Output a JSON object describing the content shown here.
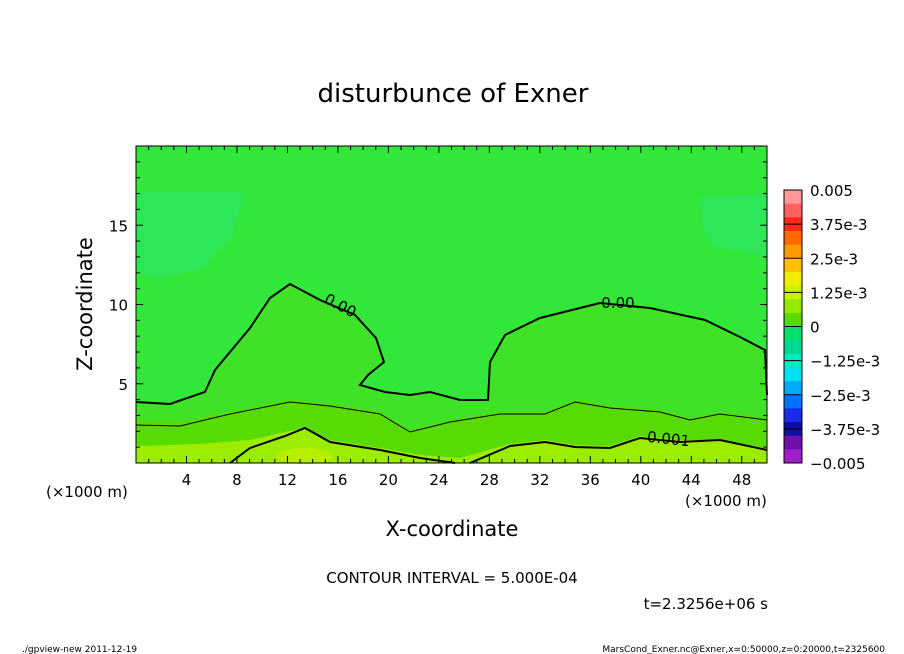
{
  "chart_data": {
    "type": "heatmap",
    "title": "disturbunce of Exner",
    "xlabel": "X-coordinate",
    "ylabel": "Z-coordinate",
    "xlim": [
      0,
      50
    ],
    "ylim": [
      0,
      20
    ],
    "x_unit_label": "(×1000 m)",
    "x_unit_label_right": "(×1000 m)",
    "xticks": [
      4,
      8,
      12,
      16,
      20,
      24,
      28,
      32,
      36,
      40,
      44,
      48
    ],
    "yticks": [
      5,
      10,
      15
    ],
    "contour_labels": [
      "0.00",
      "0.00",
      "0.001"
    ],
    "colorbar": {
      "labels": [
        "0.005",
        "3.75e-3",
        "2.5e-3",
        "1.25e-3",
        "0",
        "−1.25e-3",
        "−2.5e-3",
        "−3.75e-3",
        "−0.005"
      ],
      "colors": [
        "#ff9999",
        "#ff6060",
        "#ff2a1a",
        "#ff6a00",
        "#ff9a00",
        "#ffc000",
        "#f2ec00",
        "#c8f000",
        "#96e800",
        "#5ad800",
        "#00e16a",
        "#00d890",
        "#00eac0",
        "#00e0ee",
        "#00aaff",
        "#0070ff",
        "#1a2ae8",
        "#1010a0",
        "#7010a8",
        "#a020c8"
      ]
    },
    "contour_interval_text": "CONTOUR INTERVAL = 5.000E-04",
    "time_text": "t=2.3256e+06 s"
  },
  "footer": {
    "left": "./gpview-new  2011-12-19",
    "right": "MarsCond_Exner.nc@Exner,x=0:50000,z=0:20000,t=2325600"
  },
  "colors": {
    "background": "#33e63a",
    "lower_band": "#5bd900",
    "bottom_band": "#a8ef00",
    "upper_patch": "#2de660"
  }
}
